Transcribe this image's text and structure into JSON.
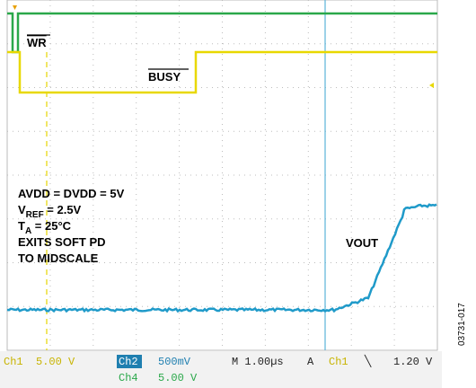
{
  "labels": {
    "wr": "WR",
    "busy": "BUSY",
    "conditions": [
      {
        "text": "AVDD = DVDD = 5V"
      },
      {
        "main": "V",
        "sub": "REF",
        "rest": " = 2.5V"
      },
      {
        "main": "T",
        "sub": "A",
        "rest": " = 25°C"
      },
      {
        "text": "EXITS SOFT PD"
      },
      {
        "text": "TO MIDSCALE"
      }
    ],
    "vout": "VOUT"
  },
  "status_bar": {
    "row1": {
      "ch1": "Ch1",
      "ch1_scale": "5.00 V",
      "ch2": "Ch2",
      "ch2_scale": "500mV",
      "time": "M 1.00µs",
      "trigger_mode": "A",
      "trigger_source": "Ch1",
      "trigger_slope": "╲",
      "trigger_level": "1.20 V"
    },
    "row2": {
      "ch4": "Ch4",
      "ch4_scale": "5.00 V"
    }
  },
  "figure_id": "03731-017"
}
